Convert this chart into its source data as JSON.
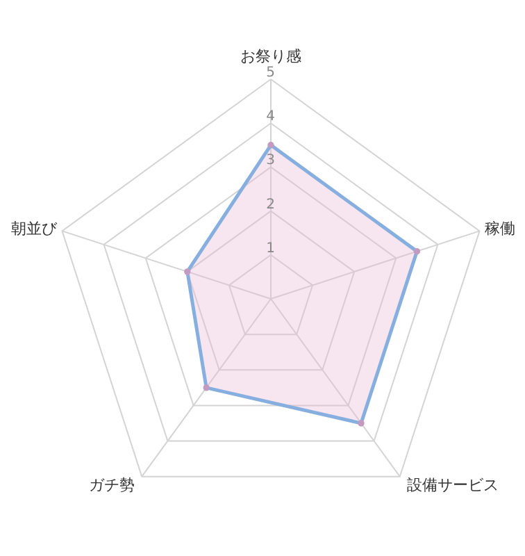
{
  "chart_data": {
    "type": "radar",
    "categories": [
      "お祭り感",
      "稼働",
      "設備サービス",
      "ガチ勢",
      "朝並び"
    ],
    "series": [
      {
        "color": "#86afdf",
        "values": [
          3.5,
          3.5,
          3.5,
          2.5,
          2
        ]
      }
    ],
    "ylim": [
      0,
      5
    ],
    "yticks": [
      1,
      2,
      3,
      4,
      5
    ],
    "grid": true,
    "marker": "circle",
    "line_style": "solid"
  }
}
